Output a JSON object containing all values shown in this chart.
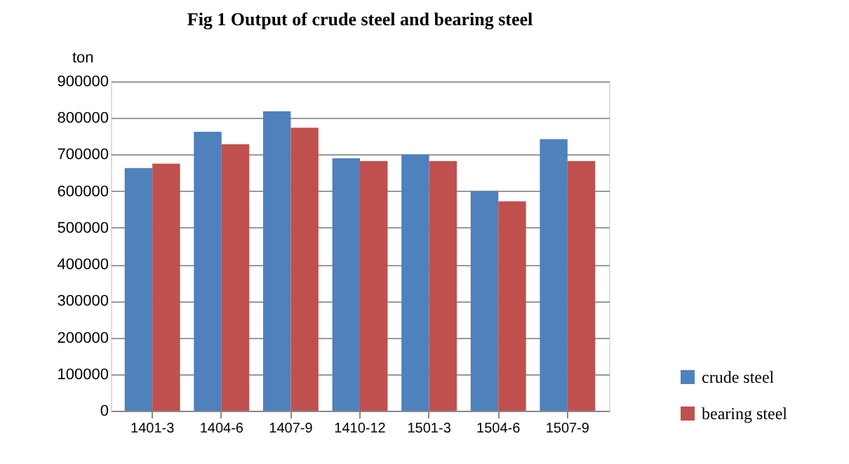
{
  "chart_data": {
    "type": "bar",
    "title": "Fig 1 Output of crude steel and bearing steel",
    "ylabel": "ton",
    "categories": [
      "1401-3",
      "1404-6",
      "1407-9",
      "1410-12",
      "1501-3",
      "1504-6",
      "1507-9"
    ],
    "series": [
      {
        "name": "crude steel",
        "color": "#4f81bd",
        "values": [
          663000,
          762000,
          818000,
          690000,
          700000,
          600000,
          742000
        ]
      },
      {
        "name": "bearing steel",
        "color": "#c0504d",
        "values": [
          675000,
          728000,
          773000,
          682000,
          682000,
          572000,
          682000
        ]
      }
    ],
    "ylim": [
      0,
      900000
    ],
    "yticks": [
      0,
      100000,
      200000,
      300000,
      400000,
      500000,
      600000,
      700000,
      800000,
      900000
    ],
    "grid": "y",
    "legend": "bottom right"
  }
}
